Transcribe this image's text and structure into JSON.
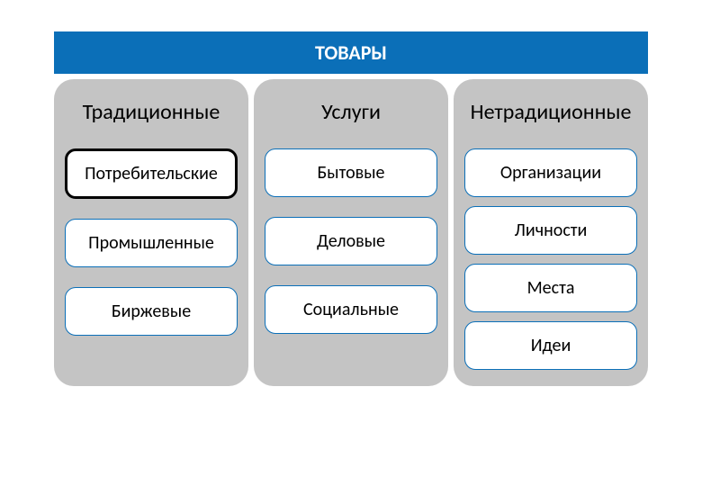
{
  "header": {
    "title": "ТОВАРЫ",
    "bg_color": "#0b6fb8",
    "text_color": "#ffffff",
    "fontsize": 22
  },
  "layout": {
    "column_bg": "#c4c4c4",
    "column_radius": 22,
    "item_bg": "#ffffff",
    "item_border_thin": "#0b6fb8",
    "item_border_thick": "#000000",
    "item_text_color": "#000000",
    "col_title_fontsize": 24,
    "item_fontsize": 20
  },
  "columns": [
    {
      "title": "Традиционные",
      "tight": false,
      "items": [
        {
          "label": "Потребительские",
          "emphasized": true
        },
        {
          "label": "Промышленные",
          "emphasized": false
        },
        {
          "label": "Биржевые",
          "emphasized": false
        }
      ]
    },
    {
      "title": "Услуги",
      "tight": false,
      "items": [
        {
          "label": "Бытовые",
          "emphasized": false
        },
        {
          "label": "Деловые",
          "emphasized": false
        },
        {
          "label": "Социальные",
          "emphasized": false
        }
      ]
    },
    {
      "title": "Нетрадиционные",
      "tight": true,
      "items": [
        {
          "label": "Организации",
          "emphasized": false
        },
        {
          "label": "Личности",
          "emphasized": false
        },
        {
          "label": "Места",
          "emphasized": false
        },
        {
          "label": "Идеи",
          "emphasized": false
        }
      ]
    }
  ]
}
